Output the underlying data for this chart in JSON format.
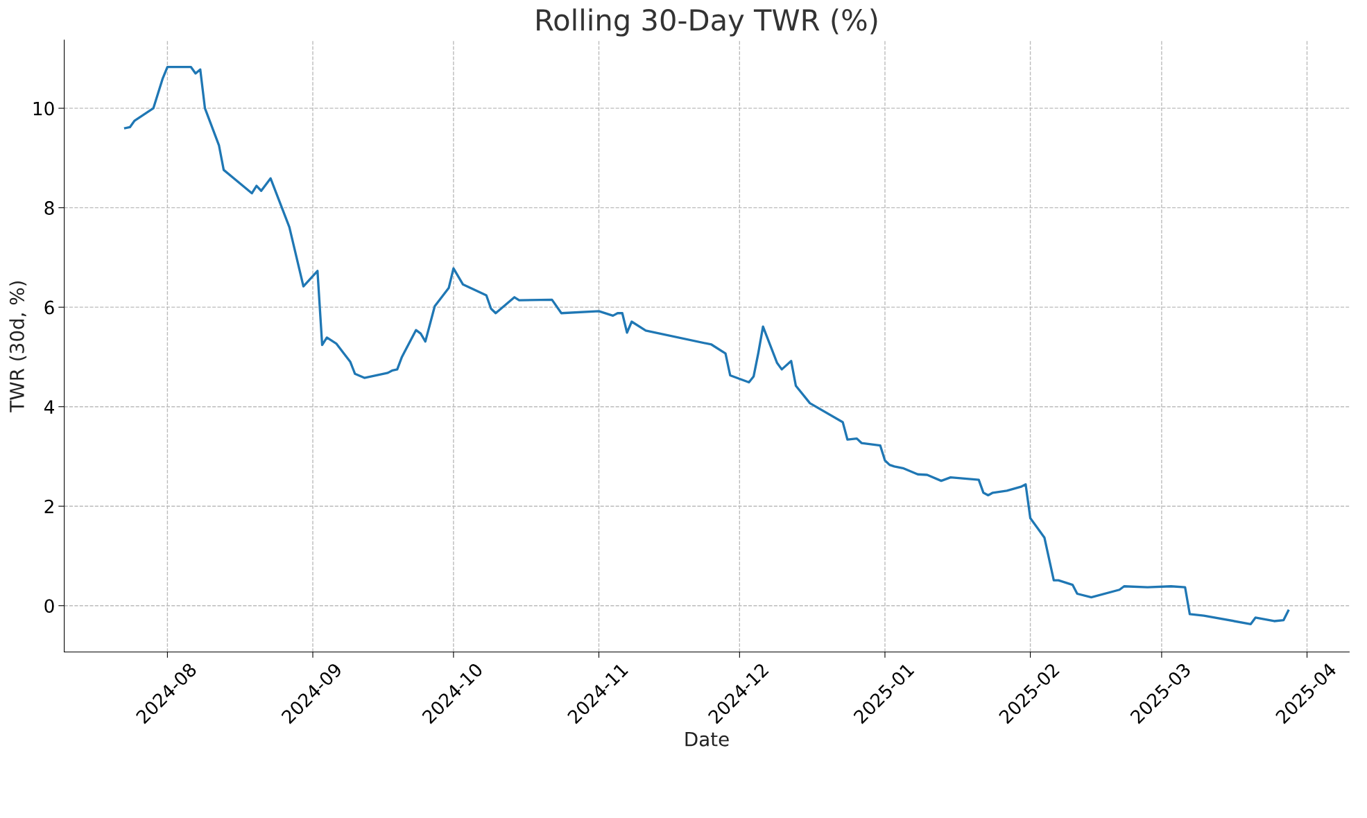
{
  "chart_data": {
    "type": "line",
    "title": "Rolling 30-Day TWR (%)",
    "xlabel": "Date",
    "ylabel": "TWR (30d, %)",
    "x": [
      "2024-07-23",
      "2024-07-24",
      "2024-07-25",
      "2024-07-29",
      "2024-07-31",
      "2024-08-01",
      "2024-08-06",
      "2024-08-07",
      "2024-08-08",
      "2024-08-09",
      "2024-08-12",
      "2024-08-13",
      "2024-08-19",
      "2024-08-20",
      "2024-08-21",
      "2024-08-23",
      "2024-08-27",
      "2024-08-30",
      "2024-09-02",
      "2024-09-03",
      "2024-09-04",
      "2024-09-06",
      "2024-09-09",
      "2024-09-10",
      "2024-09-12",
      "2024-09-17",
      "2024-09-18",
      "2024-09-19",
      "2024-09-20",
      "2024-09-23",
      "2024-09-24",
      "2024-09-25",
      "2024-09-27",
      "2024-09-30",
      "2024-10-01",
      "2024-10-03",
      "2024-10-08",
      "2024-10-09",
      "2024-10-10",
      "2024-10-14",
      "2024-10-15",
      "2024-10-22",
      "2024-10-24",
      "2024-11-01",
      "2024-11-04",
      "2024-11-05",
      "2024-11-06",
      "2024-11-07",
      "2024-11-08",
      "2024-11-11",
      "2024-11-25",
      "2024-11-28",
      "2024-11-29",
      "2024-12-03",
      "2024-12-04",
      "2024-12-05",
      "2024-12-06",
      "2024-12-09",
      "2024-12-10",
      "2024-12-12",
      "2024-12-13",
      "2024-12-16",
      "2024-12-23",
      "2024-12-24",
      "2024-12-26",
      "2024-12-27",
      "2024-12-31",
      "2025-01-01",
      "2025-01-02",
      "2025-01-03",
      "2025-01-05",
      "2025-01-08",
      "2025-01-10",
      "2025-01-13",
      "2025-01-15",
      "2025-01-21",
      "2025-01-22",
      "2025-01-23",
      "2025-01-24",
      "2025-01-27",
      "2025-01-30",
      "2025-01-31",
      "2025-02-01",
      "2025-02-04",
      "2025-02-06",
      "2025-02-07",
      "2025-02-10",
      "2025-02-11",
      "2025-02-14",
      "2025-02-20",
      "2025-02-21",
      "2025-02-26",
      "2025-03-03",
      "2025-03-06",
      "2025-03-07",
      "2025-03-10",
      "2025-03-20",
      "2025-03-21",
      "2025-03-25",
      "2025-03-27",
      "2025-03-28"
    ],
    "series": [
      {
        "color": "#1f77b4",
        "values": [
          9.6,
          9.62,
          9.75,
          10.0,
          10.6,
          10.83,
          10.83,
          10.7,
          10.78,
          10.0,
          9.25,
          8.76,
          8.29,
          8.44,
          8.34,
          8.59,
          7.61,
          6.42,
          6.73,
          5.24,
          5.39,
          5.27,
          4.9,
          4.66,
          4.58,
          4.68,
          4.73,
          4.75,
          5.0,
          5.54,
          5.47,
          5.31,
          6.02,
          6.39,
          6.78,
          6.46,
          6.24,
          5.97,
          5.88,
          6.2,
          6.14,
          6.15,
          5.88,
          5.92,
          5.83,
          5.88,
          5.88,
          5.49,
          5.71,
          5.53,
          5.25,
          5.07,
          4.63,
          4.49,
          4.61,
          5.08,
          5.61,
          4.88,
          4.75,
          4.92,
          4.42,
          4.07,
          3.69,
          3.34,
          3.36,
          3.27,
          3.22,
          2.92,
          2.83,
          2.8,
          2.76,
          2.64,
          2.63,
          2.51,
          2.58,
          2.53,
          2.27,
          2.22,
          2.27,
          2.31,
          2.39,
          2.44,
          1.76,
          1.37,
          0.51,
          0.51,
          0.42,
          0.24,
          0.17,
          0.32,
          0.39,
          0.37,
          0.39,
          0.37,
          -0.17,
          -0.2,
          -0.37,
          -0.24,
          -0.31,
          -0.29,
          -0.1
        ]
      }
    ],
    "xlim": [
      "2024-07-10",
      "2025-04-10"
    ],
    "xticks": [
      {
        "value": "2024-08-01",
        "label": "2024-08"
      },
      {
        "value": "2024-09-01",
        "label": "2024-09"
      },
      {
        "value": "2024-10-01",
        "label": "2024-10"
      },
      {
        "value": "2024-11-01",
        "label": "2024-11"
      },
      {
        "value": "2024-12-01",
        "label": "2024-12"
      },
      {
        "value": "2025-01-01",
        "label": "2025-01"
      },
      {
        "value": "2025-02-01",
        "label": "2025-02"
      },
      {
        "value": "2025-03-01",
        "label": "2025-03"
      },
      {
        "value": "2025-04-01",
        "label": "2025-04"
      }
    ],
    "ylim": [
      -0.93,
      11.37
    ],
    "yticks": [
      0,
      2,
      4,
      6,
      8,
      10
    ],
    "grid": true,
    "line_style": "solid",
    "marker": "none"
  }
}
